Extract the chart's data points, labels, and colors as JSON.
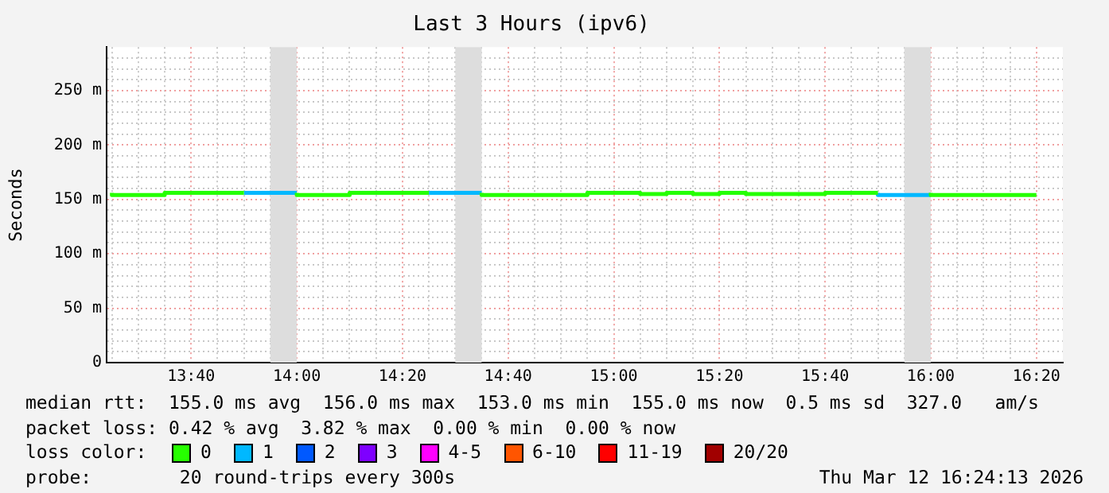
{
  "chart_data": {
    "type": "step",
    "title": "Last 3 Hours (ipv6)",
    "ylabel": "Seconds",
    "legend_title": "loss color:",
    "legend": "bottom",
    "grid": true,
    "line_style": "solid",
    "marker": "none",
    "xlim": [
      13.4,
      16.4167
    ],
    "xticks": [
      {
        "value": 13.4167,
        "label": null
      },
      {
        "value": 13.5,
        "label": null
      },
      {
        "value": 13.5833,
        "label": null
      },
      {
        "value": 13.6667,
        "label": "13:40"
      },
      {
        "value": 13.75,
        "label": null
      },
      {
        "value": 13.8333,
        "label": null
      },
      {
        "value": 13.9167,
        "label": null
      },
      {
        "value": 14,
        "label": "14:00"
      },
      {
        "value": 14.0833,
        "label": null
      },
      {
        "value": 14.1667,
        "label": null
      },
      {
        "value": 14.25,
        "label": null
      },
      {
        "value": 14.3333,
        "label": "14:20"
      },
      {
        "value": 14.4167,
        "label": null
      },
      {
        "value": 14.5,
        "label": null
      },
      {
        "value": 14.5833,
        "label": null
      },
      {
        "value": 14.6667,
        "label": "14:40"
      },
      {
        "value": 14.75,
        "label": null
      },
      {
        "value": 14.8333,
        "label": null
      },
      {
        "value": 14.9167,
        "label": null
      },
      {
        "value": 15,
        "label": "15:00"
      },
      {
        "value": 15.0833,
        "label": null
      },
      {
        "value": 15.1667,
        "label": null
      },
      {
        "value": 15.25,
        "label": null
      },
      {
        "value": 15.3333,
        "label": "15:20"
      },
      {
        "value": 15.4167,
        "label": null
      },
      {
        "value": 15.5,
        "label": null
      },
      {
        "value": 15.5833,
        "label": null
      },
      {
        "value": 15.6667,
        "label": "15:40"
      },
      {
        "value": 15.75,
        "label": null
      },
      {
        "value": 15.8333,
        "label": null
      },
      {
        "value": 15.9167,
        "label": null
      },
      {
        "value": 16,
        "label": "16:00"
      },
      {
        "value": 16.0833,
        "label": null
      },
      {
        "value": 16.1667,
        "label": null
      },
      {
        "value": 16.25,
        "label": null
      },
      {
        "value": 16.3333,
        "label": "16:20"
      }
    ],
    "ylim": [
      0,
      290
    ],
    "yticks": [
      0,
      {
        "value": 10,
        "label": null
      },
      {
        "value": 20,
        "label": null
      },
      {
        "value": 30,
        "label": null
      },
      {
        "value": 40,
        "label": null
      },
      {
        "value": 50,
        "label": "50 m"
      },
      {
        "value": 60,
        "label": null
      },
      {
        "value": 70,
        "label": null
      },
      {
        "value": 80,
        "label": null
      },
      {
        "value": 90,
        "label": null
      },
      {
        "value": 100,
        "label": "100 m"
      },
      {
        "value": 110,
        "label": null
      },
      {
        "value": 120,
        "label": null
      },
      {
        "value": 130,
        "label": null
      },
      {
        "value": 140,
        "label": null
      },
      {
        "value": 150,
        "label": "150 m"
      },
      {
        "value": 160,
        "label": null
      },
      {
        "value": 170,
        "label": null
      },
      {
        "value": 180,
        "label": null
      },
      {
        "value": 190,
        "label": null
      },
      {
        "value": 200,
        "label": "200 m"
      },
      {
        "value": 210,
        "label": null
      },
      {
        "value": 220,
        "label": null
      },
      {
        "value": 230,
        "label": null
      },
      {
        "value": 240,
        "label": null
      },
      {
        "value": 250,
        "label": "250 m"
      },
      {
        "value": 260,
        "label": null
      },
      {
        "value": 270,
        "label": null
      },
      {
        "value": 280,
        "label": null
      }
    ],
    "bands": [
      {
        "axis": "x",
        "from": 13.9167,
        "to": 14,
        "color": "#dddddd"
      },
      {
        "axis": "x",
        "from": 14.5,
        "to": 14.5833,
        "color": "#dddddd"
      },
      {
        "axis": "x",
        "from": 15.9167,
        "to": 16,
        "color": "#dddddd"
      }
    ],
    "series": [
      {
        "name": "0",
        "color": "#26ff00",
        "x": [
          13.4167,
          13.5833,
          13.75,
          13.8333,
          13.9,
          14,
          14.1667,
          14.3333,
          14.4167,
          14.5,
          14.5833,
          14.9167,
          15.0833,
          15.1667,
          15.25,
          15.3333,
          15.4167,
          15.6667,
          15.75,
          15.8333,
          15.9,
          16,
          16.25,
          16.3333
        ],
        "values": [
          156,
          154,
          156,
          156,
          null,
          156,
          154,
          156,
          156,
          null,
          156,
          154,
          156,
          155,
          156,
          155,
          156,
          155,
          156,
          156,
          null,
          156,
          154,
          154
        ]
      },
      {
        "name": "1",
        "color": "#00b8ff",
        "x": [
          13.8333,
          14,
          14.05,
          14.4167,
          14.5833,
          14.7,
          15.8333,
          15.9167,
          16
        ],
        "values": [
          156,
          156,
          null,
          156,
          156,
          null,
          156,
          154,
          154
        ]
      },
      {
        "name": "2",
        "color": "#0059ff"
      },
      {
        "name": "3",
        "color": "#7e00ff"
      },
      {
        "name": "4-5",
        "color": "#ff00ff"
      },
      {
        "name": "6-10",
        "color": "#ff5500"
      },
      {
        "name": "11-19",
        "color": "#ff0000"
      },
      {
        "name": "20/20",
        "color": "#a10000"
      }
    ],
    "annotations": [
      "median rtt:  155.0 ms avg  156.0 ms max  153.0 ms min  155.0 ms now  0.5 ms sd  327.0   am/s",
      "packet loss: 0.42 % avg  3.82 % max  0.00 % min  0.00 % now",
      "probe:        20 round-trips every 300s",
      "Thu Mar 12 16:24:13 2026"
    ]
  }
}
